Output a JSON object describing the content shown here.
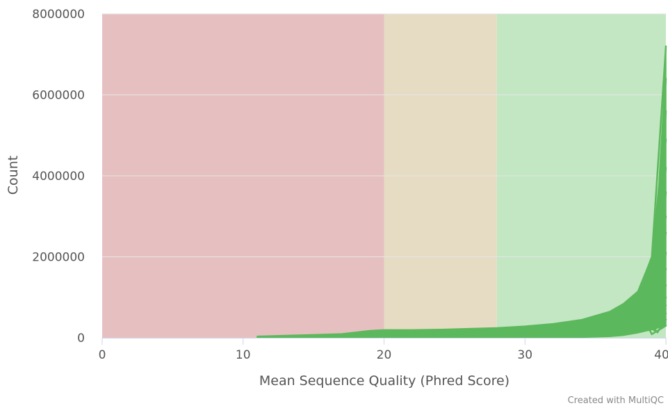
{
  "chart_data": {
    "type": "area",
    "title": "",
    "xlabel": "Mean Sequence Quality (Phred Score)",
    "ylabel": "Count",
    "xlim": [
      0,
      40
    ],
    "ylim": [
      0,
      8000000
    ],
    "x_ticks": [
      "0",
      "10",
      "20",
      "30",
      "40"
    ],
    "y_ticks": [
      "0",
      "2000000",
      "4000000",
      "6000000",
      "8000000"
    ],
    "grid": true,
    "legend": "none",
    "bands": [
      {
        "from": 0,
        "to": 20,
        "color": "#e6c0c0"
      },
      {
        "from": 20,
        "to": 28,
        "color": "#e6dcc3"
      },
      {
        "from": 28,
        "to": 40,
        "color": "#c3e6c3"
      }
    ],
    "series_color": "#5cb85c",
    "band_lower": {
      "x": [
        11,
        17,
        19,
        20,
        25,
        30,
        34,
        36,
        37,
        38,
        38.5,
        39,
        39.5,
        40
      ],
      "y": [
        0,
        0,
        0,
        0,
        0,
        5000,
        10000,
        30000,
        60000,
        120000,
        160000,
        200000,
        250000,
        300000
      ]
    },
    "band_upper": {
      "x": [
        11,
        13,
        15,
        17,
        19,
        20,
        22,
        24,
        26,
        28,
        30,
        32,
        34,
        36,
        37,
        38,
        39,
        39.5,
        39.8,
        40
      ],
      "y": [
        40000,
        60000,
        80000,
        100000,
        180000,
        200000,
        200000,
        210000,
        230000,
        250000,
        290000,
        350000,
        450000,
        650000,
        850000,
        1150000,
        2000000,
        3800000,
        5600000,
        7200000
      ]
    },
    "sample_peaks": [
      7200000,
      6400000,
      5600000,
      4900000,
      4200000,
      3600000,
      3000000,
      2600000,
      2100000,
      1700000,
      1300000,
      1000000,
      800000,
      600000,
      450000,
      300000
    ]
  },
  "credit": "Created with MultiQC"
}
